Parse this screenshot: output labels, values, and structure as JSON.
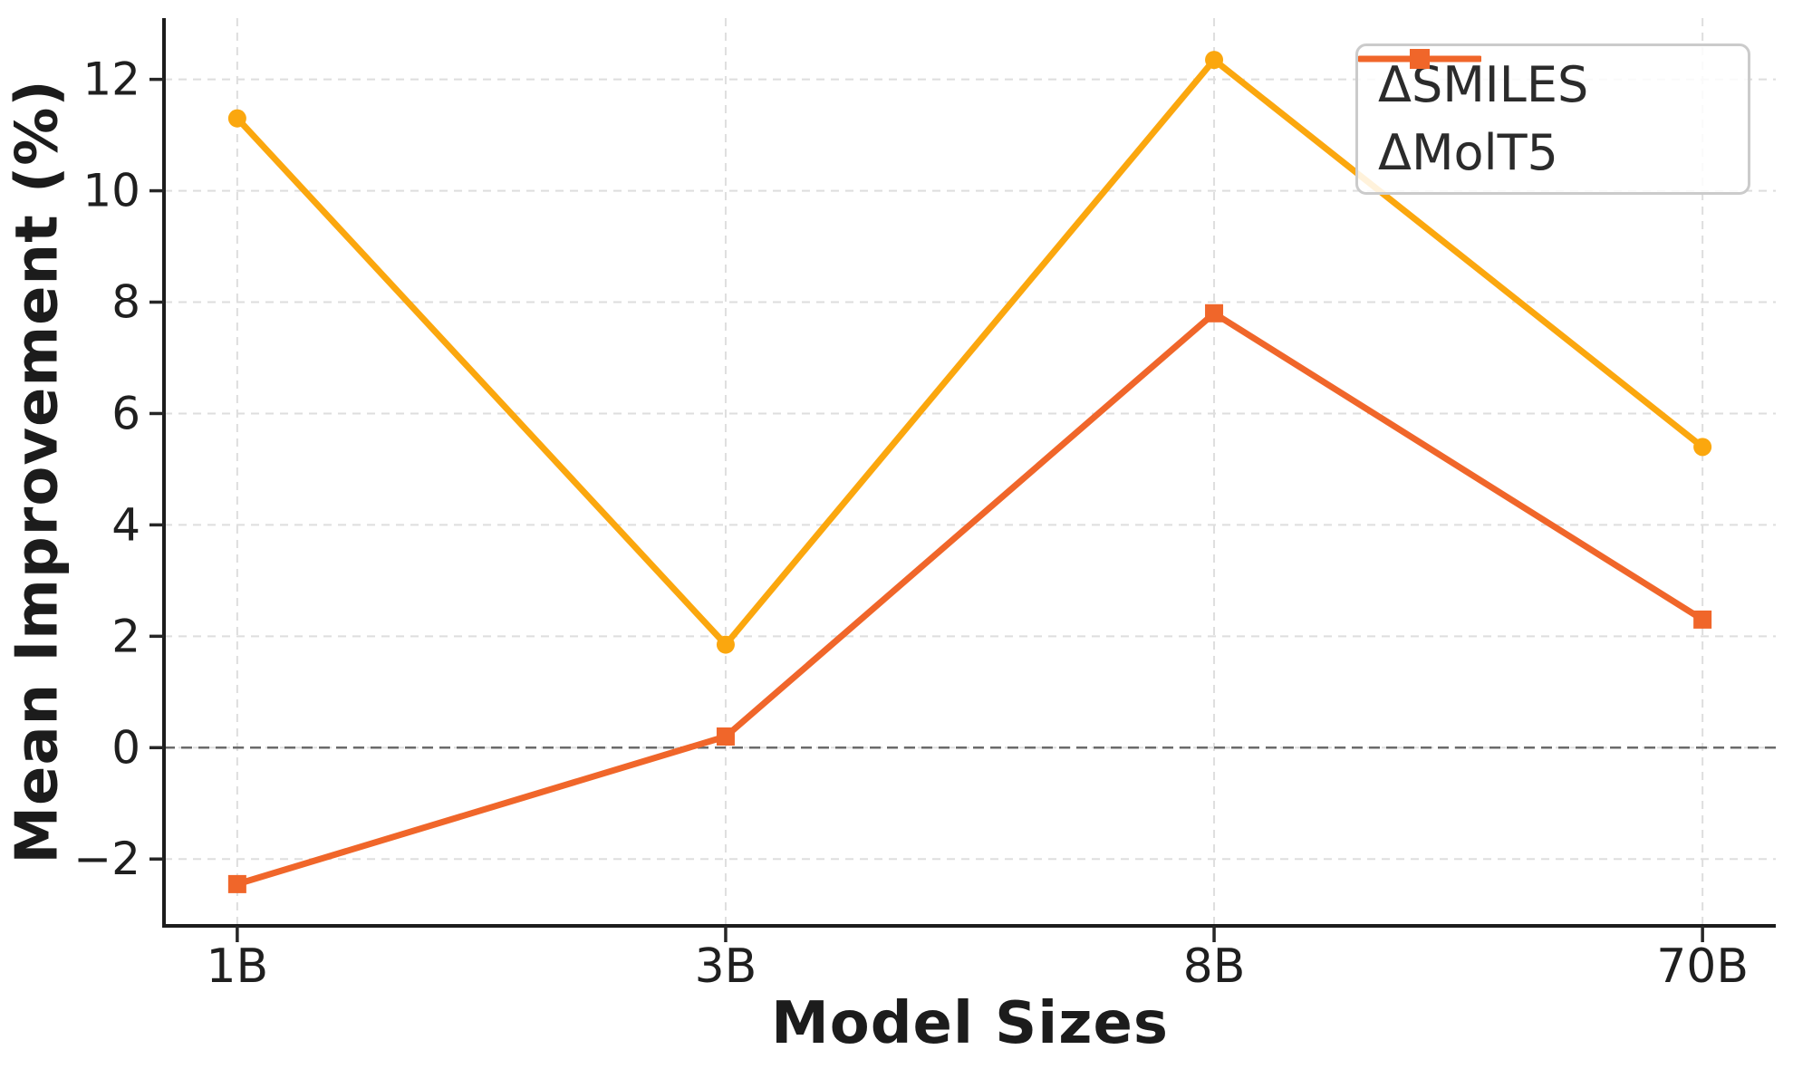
{
  "chart_data": {
    "type": "line",
    "title": "",
    "xlabel": "Model Sizes",
    "ylabel": "Mean Improvement (%)",
    "categories": [
      "1B",
      "3B",
      "8B",
      "70B"
    ],
    "series": [
      {
        "name": "ΔSMILES",
        "marker": "circle",
        "color": "#FBA70E",
        "values": [
          11.3,
          1.85,
          12.35,
          5.4
        ]
      },
      {
        "name": "ΔMolT5",
        "marker": "square",
        "color": "#F0662A",
        "values": [
          -2.45,
          0.2,
          7.8,
          2.3
        ]
      }
    ],
    "yticks": [
      -2,
      0,
      2,
      4,
      6,
      8,
      10,
      12
    ],
    "ylim": [
      -3.2,
      13.1
    ],
    "grid": true,
    "grid_style": "dashed",
    "zero_line": true,
    "legend_position": "upper right"
  },
  "style": {
    "grid_color": "#dedede",
    "zero_line_color": "#6b6b6b",
    "spine_color": "#1c1c1c",
    "tick_color": "#262626",
    "tick_label_color": "#1f1f1f",
    "legend_border_color": "#cbcbcb",
    "background": "#ffffff"
  }
}
